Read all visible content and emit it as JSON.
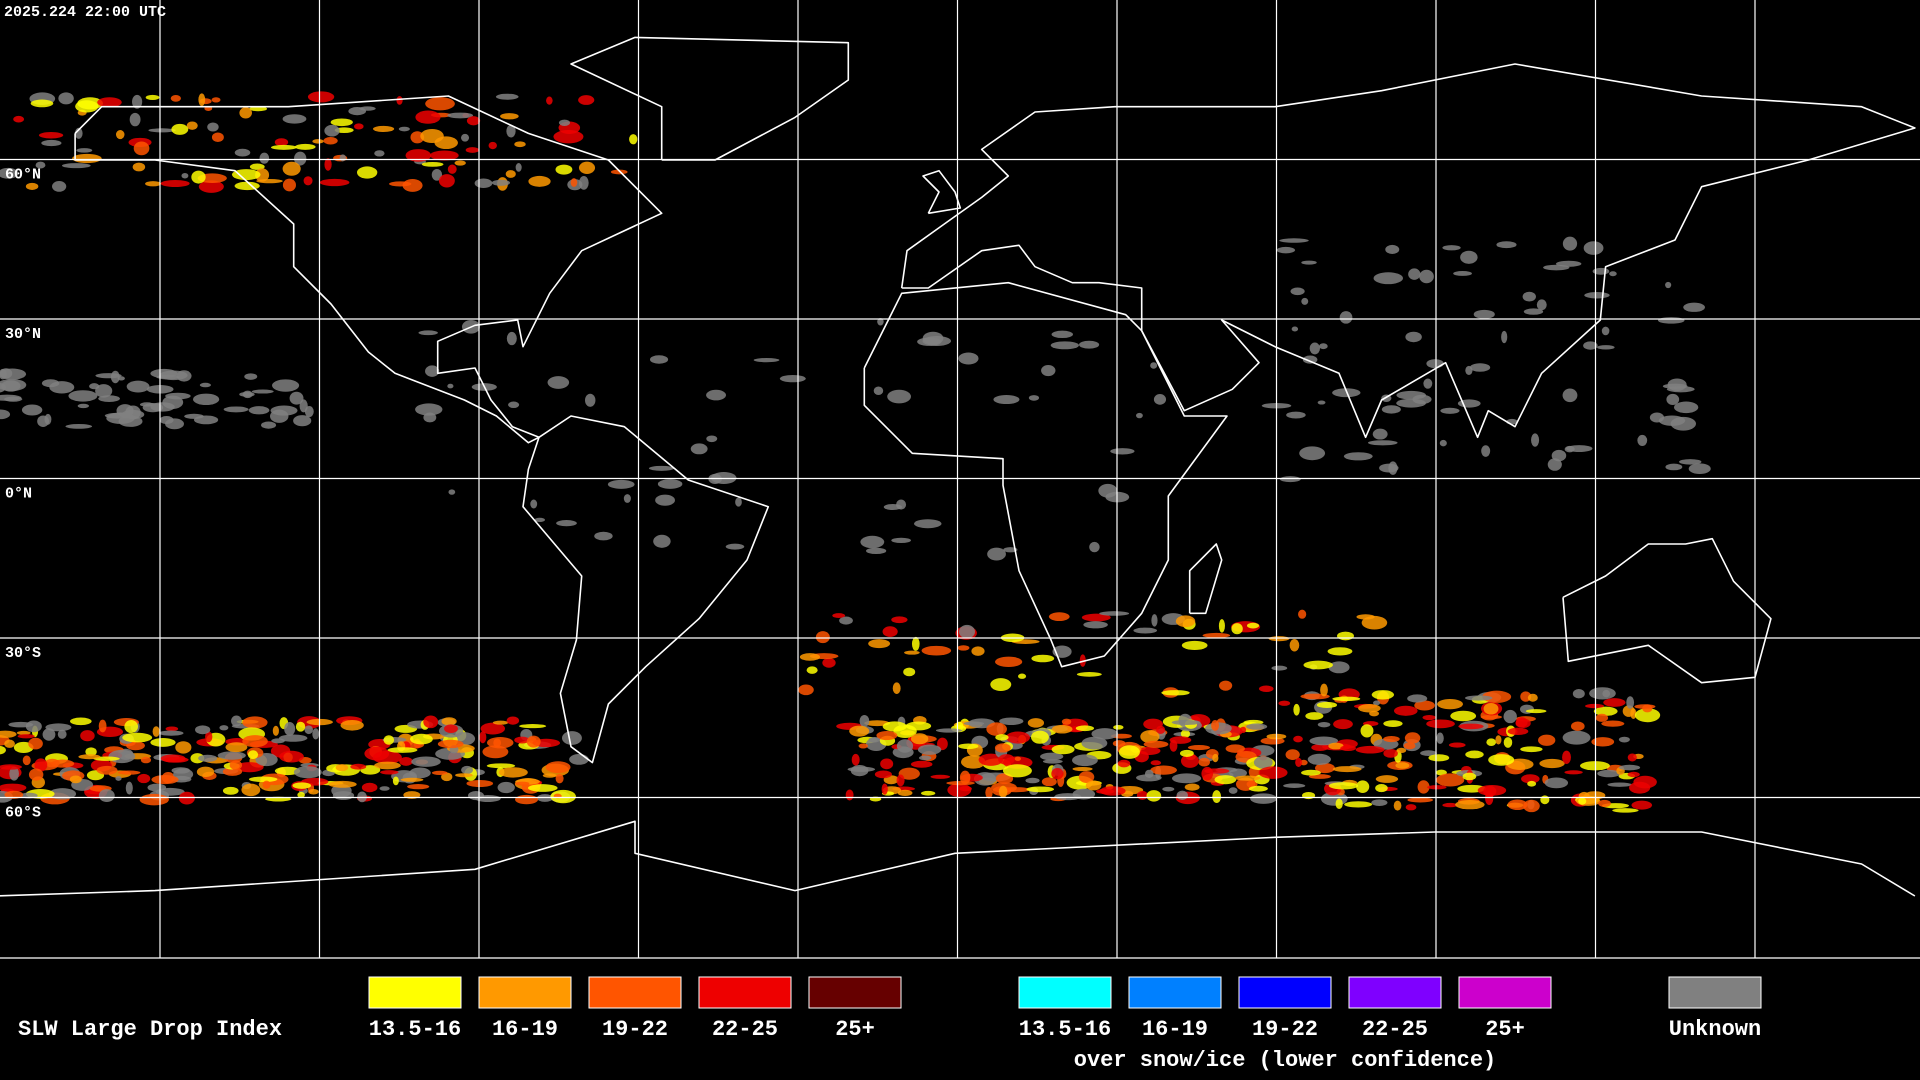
{
  "header": {
    "timestamp": "2025.224 22:00 UTC"
  },
  "map": {
    "latitude_labels": [
      "60°N",
      "30°N",
      "0°N",
      "30°S",
      "60°S"
    ]
  },
  "legend": {
    "title": "SLW Large Drop Index",
    "groups": [
      {
        "items": [
          {
            "label": "13.5-16",
            "color": "#ffff00"
          },
          {
            "label": "16-19",
            "color": "#ff9900"
          },
          {
            "label": "19-22",
            "color": "#ff5500"
          },
          {
            "label": "22-25",
            "color": "#ee0000"
          },
          {
            "label": "25+",
            "color": "#660000"
          }
        ]
      },
      {
        "caption": "over snow/ice (lower confidence)",
        "items": [
          {
            "label": "13.5-16",
            "color": "#00ffff"
          },
          {
            "label": "16-19",
            "color": "#0080ff"
          },
          {
            "label": "19-22",
            "color": "#0000ff"
          },
          {
            "label": "22-25",
            "color": "#7f00ff"
          },
          {
            "label": "25+",
            "color": "#cc00cc"
          }
        ]
      },
      {
        "items": [
          {
            "label": "Unknown",
            "color": "#808080"
          }
        ]
      }
    ]
  }
}
